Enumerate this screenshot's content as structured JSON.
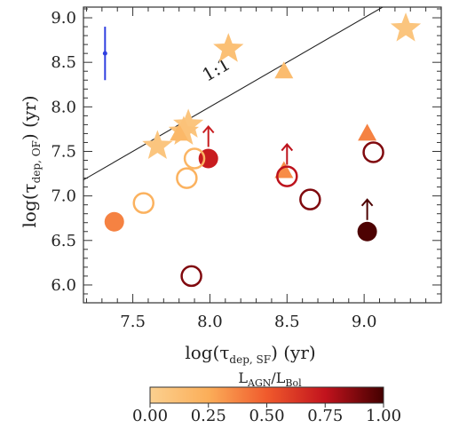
{
  "chart_data": {
    "type": "scatter",
    "title": "",
    "xlabel": "log(τdep, SF) (yr)",
    "ylabel": "log(τdep, OF) (yr)",
    "xlim": [
      7.18,
      9.5
    ],
    "ylim": [
      5.8,
      9.12
    ],
    "xticks": [
      "7.5",
      "8.0",
      "8.5",
      "9.0"
    ],
    "yticks": [
      "6.0",
      "6.5",
      "7.0",
      "7.5",
      "8.0",
      "8.5",
      "9.0"
    ],
    "grid": false,
    "reference_line": {
      "label": "1:1",
      "slope": 1,
      "intercept": 0
    },
    "error_bar": {
      "x": 7.32,
      "y": 8.6,
      "ymin": 8.3,
      "ymax": 8.9,
      "color": "#2f3fe0"
    },
    "colorbar": {
      "title": "LAGN/LBol",
      "min": 0.0,
      "max": 1.0,
      "ticks": [
        "0.00",
        "0.25",
        "0.50",
        "0.75",
        "1.00"
      ],
      "colors": [
        "#fbd08f",
        "#fbae59",
        "#f05a2c",
        "#c2131d",
        "#430000"
      ]
    },
    "series": [
      {
        "marker": "star",
        "points": [
          {
            "x": 7.66,
            "y": 7.56,
            "c": 0.08
          },
          {
            "x": 7.86,
            "y": 7.8,
            "c": 0.08
          },
          {
            "x": 7.83,
            "y": 7.72,
            "c": 0.1
          },
          {
            "x": 8.12,
            "y": 8.65,
            "c": 0.12
          },
          {
            "x": 9.27,
            "y": 8.88,
            "c": 0.08
          }
        ]
      },
      {
        "marker": "triangle",
        "points": [
          {
            "x": 7.8,
            "y": 7.7,
            "c": 0.18
          },
          {
            "x": 8.48,
            "y": 7.28,
            "c": 0.35
          },
          {
            "x": 8.48,
            "y": 8.4,
            "c": 0.15
          },
          {
            "x": 9.02,
            "y": 7.7,
            "c": 0.38
          }
        ]
      },
      {
        "marker": "filled-circle",
        "points": [
          {
            "x": 7.38,
            "y": 6.71,
            "c": 0.38
          },
          {
            "x": 7.99,
            "y": 7.42,
            "c": 0.72,
            "lower_limit": true
          },
          {
            "x": 9.02,
            "y": 6.6,
            "c": 0.98,
            "lower_limit": true
          }
        ]
      },
      {
        "marker": "open-circle",
        "points": [
          {
            "x": 7.57,
            "y": 6.92,
            "c": 0.22
          },
          {
            "x": 7.85,
            "y": 7.2,
            "c": 0.22
          },
          {
            "x": 7.9,
            "y": 7.42,
            "c": 0.2
          },
          {
            "x": 8.5,
            "y": 7.22,
            "c": 0.76,
            "lower_limit": true
          },
          {
            "x": 7.88,
            "y": 6.1,
            "c": 0.88
          },
          {
            "x": 8.65,
            "y": 6.96,
            "c": 0.88
          },
          {
            "x": 9.06,
            "y": 7.49,
            "c": 0.88
          }
        ]
      }
    ]
  }
}
